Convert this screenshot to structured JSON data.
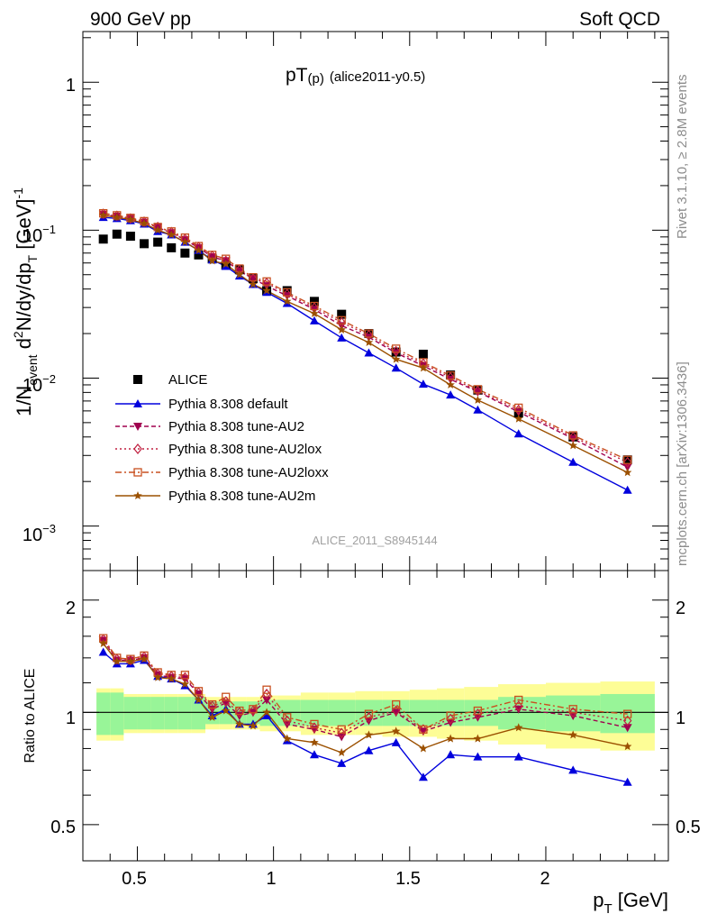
{
  "header": {
    "left": "900 GeV pp",
    "right": "Soft QCD"
  },
  "plot_title": {
    "main": "pT",
    "sub": "(p)",
    "tag": "(alice2011-y0.5)"
  },
  "side_labels": {
    "top": "Rivet 3.1.10, ≥ 2.8M events",
    "bottom": "mcplots.cern.ch [arXiv:1306.3436]"
  },
  "watermark": "ALICE_2011_S8945144",
  "axes": {
    "top_ylabel": {
      "a": "1/N",
      "b": "event",
      "c": " d",
      "d": "2",
      "e": "N/dy/dp",
      "f": "T",
      "g": " [GeV]",
      "h": "-1"
    },
    "bottom_ylabel": "Ratio to ALICE",
    "xlabel": {
      "a": "p",
      "b": "T",
      "c": " [GeV]"
    },
    "x_ticks": [
      "0.5",
      "1",
      "1.5",
      "2"
    ],
    "top_y_ticks": [
      {
        "base": "1",
        "exp": ""
      },
      {
        "base": "10",
        "exp": "−1"
      },
      {
        "base": "10",
        "exp": "−2"
      },
      {
        "base": "10",
        "exp": "−3"
      }
    ],
    "ratio_y_ticks": [
      "2",
      "1",
      "0.5"
    ]
  },
  "chart_data": {
    "type": "line",
    "x_unit": "GeV",
    "xlim": [
      0.3,
      2.45
    ],
    "ylim_top": [
      0.0005,
      2.2
    ],
    "y_scale_top": "log",
    "ylim_ratio": [
      0.4,
      2.4
    ],
    "y_scale_ratio": "log",
    "x": [
      0.375,
      0.425,
      0.475,
      0.525,
      0.575,
      0.625,
      0.675,
      0.725,
      0.775,
      0.825,
      0.875,
      0.925,
      0.975,
      1.05,
      1.15,
      1.25,
      1.35,
      1.45,
      1.55,
      1.65,
      1.75,
      1.9,
      2.1,
      2.3
    ],
    "series": [
      {
        "name": "ALICE",
        "color": "#000000",
        "marker": "square",
        "values": [
          0.087,
          0.094,
          0.091,
          0.081,
          0.083,
          0.076,
          0.07,
          0.068,
          0.064,
          0.058,
          0.054,
          0.047,
          0.039,
          0.039,
          0.033,
          0.027,
          0.02,
          0.015,
          0.0145,
          0.0105,
          0.0083,
          0.0058,
          0.004,
          0.0028
        ]
      },
      {
        "name": "Pythia 8.308 default",
        "color": "#0000dd",
        "marker": "triangle-up",
        "dash": "",
        "values": [
          0.122,
          0.12,
          0.116,
          0.11,
          0.098,
          0.093,
          0.083,
          0.073,
          0.063,
          0.057,
          0.049,
          0.043,
          0.038,
          0.032,
          0.0244,
          0.0187,
          0.0148,
          0.0117,
          0.0091,
          0.0077,
          0.0061,
          0.0042,
          0.0027,
          0.00175
        ]
      },
      {
        "name": "Pythia 8.308 tune-AU2",
        "color": "#a0004f",
        "marker": "triangle-down",
        "dash": "5,3",
        "values": [
          0.128,
          0.124,
          0.12,
          0.113,
          0.104,
          0.096,
          0.086,
          0.076,
          0.066,
          0.062,
          0.053,
          0.047,
          0.042,
          0.036,
          0.0291,
          0.0226,
          0.0189,
          0.0148,
          0.0121,
          0.0098,
          0.0081,
          0.0059,
          0.0039,
          0.0025
        ]
      },
      {
        "name": "Pythia 8.308 tune-AU2lox",
        "color": "#c02040",
        "marker": "diamond",
        "dash": "2,3",
        "values": [
          0.129,
          0.125,
          0.12,
          0.114,
          0.105,
          0.097,
          0.087,
          0.077,
          0.067,
          0.062,
          0.054,
          0.047,
          0.044,
          0.037,
          0.0299,
          0.0238,
          0.0195,
          0.0152,
          0.0125,
          0.0101,
          0.0082,
          0.0061,
          0.004,
          0.0027
        ]
      },
      {
        "name": "Pythia 8.308 tune-AU2loxx",
        "color": "#c85020",
        "marker": "square-open",
        "dash": "7,3,2,3",
        "values": [
          0.13,
          0.126,
          0.121,
          0.115,
          0.105,
          0.098,
          0.089,
          0.078,
          0.068,
          0.064,
          0.055,
          0.048,
          0.045,
          0.038,
          0.0307,
          0.0246,
          0.02,
          0.0158,
          0.0128,
          0.0104,
          0.0084,
          0.0063,
          0.0041,
          0.0028
        ]
      },
      {
        "name": "Pythia 8.308 tune-AU2m",
        "color": "#9b5000",
        "marker": "star",
        "dash": "",
        "values": [
          0.126,
          0.122,
          0.118,
          0.111,
          0.1,
          0.093,
          0.083,
          0.073,
          0.062,
          0.059,
          0.05,
          0.043,
          0.039,
          0.033,
          0.0273,
          0.0212,
          0.0174,
          0.0134,
          0.0117,
          0.009,
          0.0071,
          0.0053,
          0.0035,
          0.0023
        ]
      }
    ],
    "ratio": {
      "band_inner_low": [
        0.87,
        0.87,
        0.9,
        0.9,
        0.9,
        0.9,
        0.9,
        0.9,
        0.93,
        0.93,
        0.93,
        0.93,
        0.92,
        0.92,
        0.92,
        0.92,
        0.92,
        0.92,
        0.92,
        0.92,
        0.92,
        0.9,
        0.89,
        0.88
      ],
      "band_inner_high": [
        1.13,
        1.13,
        1.1,
        1.1,
        1.1,
        1.1,
        1.1,
        1.1,
        1.07,
        1.07,
        1.07,
        1.07,
        1.08,
        1.08,
        1.08,
        1.08,
        1.08,
        1.08,
        1.08,
        1.08,
        1.08,
        1.1,
        1.11,
        1.12
      ],
      "band_outer_low": [
        0.84,
        0.84,
        0.88,
        0.88,
        0.88,
        0.88,
        0.88,
        0.88,
        0.9,
        0.9,
        0.9,
        0.9,
        0.89,
        0.89,
        0.87,
        0.87,
        0.87,
        0.86,
        0.86,
        0.85,
        0.84,
        0.82,
        0.8,
        0.79
      ],
      "band_outer_high": [
        1.16,
        1.16,
        1.12,
        1.12,
        1.12,
        1.12,
        1.12,
        1.12,
        1.1,
        1.1,
        1.1,
        1.1,
        1.11,
        1.11,
        1.13,
        1.13,
        1.14,
        1.14,
        1.15,
        1.16,
        1.17,
        1.19,
        1.2,
        1.21
      ],
      "series": [
        {
          "name": "Pythia 8.308 default",
          "values": [
            1.45,
            1.35,
            1.35,
            1.38,
            1.25,
            1.23,
            1.18,
            1.08,
            0.98,
            1.02,
            0.93,
            0.93,
            0.98,
            0.84,
            0.77,
            0.73,
            0.79,
            0.83,
            0.67,
            0.77,
            0.76,
            0.76,
            0.7,
            0.65
          ]
        },
        {
          "name": "Pythia 8.308 tune-AU2",
          "values": [
            1.56,
            1.38,
            1.38,
            1.4,
            1.26,
            1.24,
            1.23,
            1.12,
            1.02,
            1.06,
            0.98,
            1.0,
            1.08,
            0.93,
            0.9,
            0.86,
            0.95,
            1.0,
            0.89,
            0.94,
            0.97,
            1.02,
            0.98,
            0.91
          ]
        },
        {
          "name": "Pythia 8.308 tune-AU2lox",
          "values": [
            1.57,
            1.39,
            1.38,
            1.41,
            1.27,
            1.25,
            1.24,
            1.13,
            1.04,
            1.07,
            1.0,
            1.01,
            1.12,
            0.95,
            0.91,
            0.88,
            0.97,
            1.01,
            0.9,
            0.96,
            0.99,
            1.04,
            1.0,
            0.95
          ]
        },
        {
          "name": "Pythia 8.308 tune-AU2loxx",
          "values": [
            1.58,
            1.4,
            1.39,
            1.42,
            1.28,
            1.26,
            1.26,
            1.14,
            1.05,
            1.1,
            1.01,
            1.02,
            1.15,
            0.97,
            0.93,
            0.9,
            0.99,
            1.05,
            0.9,
            0.98,
            1.01,
            1.08,
            1.02,
            0.99
          ]
        },
        {
          "name": "Pythia 8.308 tune-AU2m",
          "values": [
            1.53,
            1.37,
            1.37,
            1.39,
            1.24,
            1.23,
            1.19,
            1.08,
            0.97,
            1.01,
            0.93,
            0.92,
            1.0,
            0.85,
            0.83,
            0.78,
            0.87,
            0.89,
            0.8,
            0.85,
            0.85,
            0.91,
            0.87,
            0.81
          ]
        }
      ]
    }
  }
}
